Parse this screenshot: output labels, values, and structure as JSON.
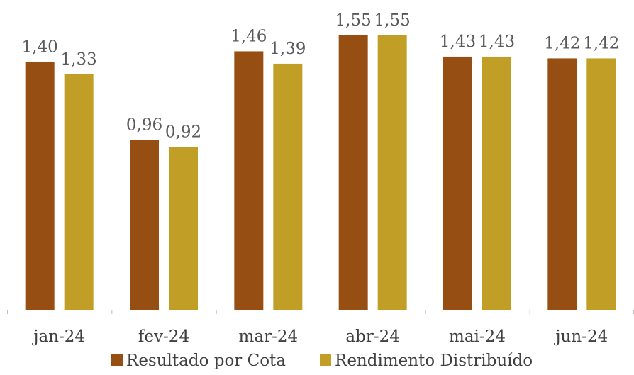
{
  "chart_data": {
    "type": "bar",
    "categories": [
      "jan-24",
      "fev-24",
      "mar-24",
      "abr-24",
      "mai-24",
      "jun-24"
    ],
    "series": [
      {
        "name": "Resultado por Cota",
        "color": "#974E12",
        "values": [
          1.4,
          0.96,
          1.46,
          1.55,
          1.43,
          1.42
        ],
        "labels": [
          "1,40",
          "0,96",
          "1,46",
          "1,55",
          "1,43",
          "1,42"
        ]
      },
      {
        "name": "Rendimento Distribuído",
        "color": "#C19E25",
        "values": [
          1.33,
          0.92,
          1.39,
          1.55,
          1.43,
          1.42
        ],
        "labels": [
          "1,33",
          "0,92",
          "1,39",
          "1,55",
          "1,43",
          "1,42"
        ]
      }
    ],
    "title": "",
    "xlabel": "",
    "ylabel": "",
    "ylim": [
      0,
      1.6
    ],
    "grid": false,
    "legend_position": "bottom",
    "axis_color": "#bfbfbf",
    "text_color": "#404040",
    "label_color": "#595959"
  }
}
